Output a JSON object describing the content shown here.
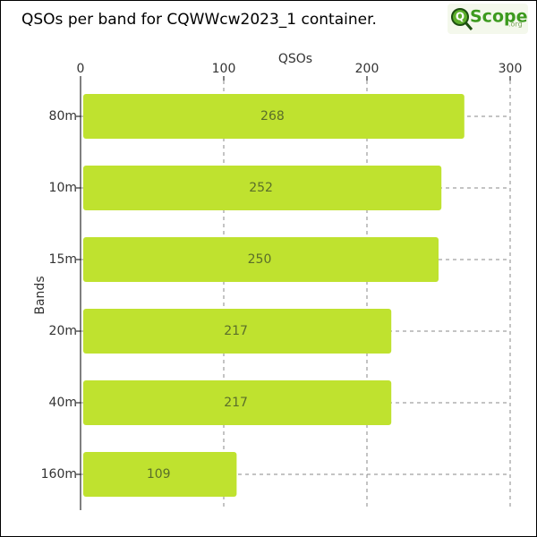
{
  "logo": {
    "icon": "Q",
    "name": "Scope",
    "suffix": ".org"
  },
  "chart_data": {
    "type": "barh",
    "title": "QSOs per band for CQWWcw2023_1 container.",
    "xlabel": "QSOs",
    "ylabel": "Bands",
    "categories": [
      "80m",
      "10m",
      "15m",
      "20m",
      "40m",
      "160m"
    ],
    "values": [
      268,
      252,
      250,
      217,
      217,
      109
    ],
    "color": "#bfe22f",
    "xlim": [
      0,
      300
    ],
    "xticks": [
      0,
      100,
      200,
      300
    ],
    "grid": true
  }
}
